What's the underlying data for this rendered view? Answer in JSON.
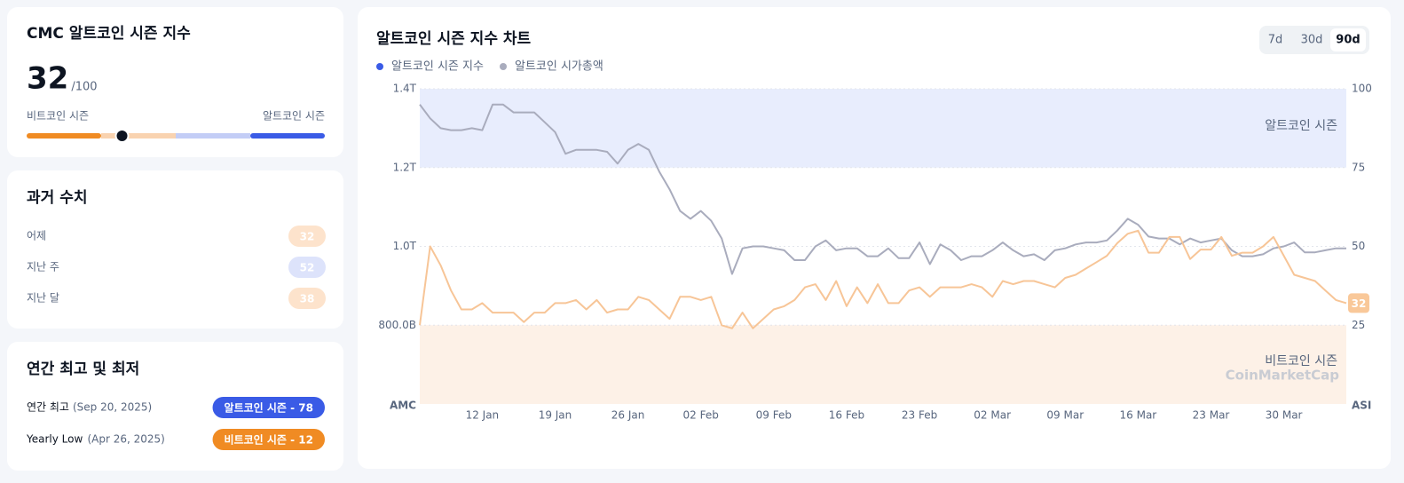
{
  "current": {
    "title": "CMC 알트코인 시즌 지수",
    "value": 32,
    "scale": "/100",
    "range": [
      0,
      100
    ],
    "left_label": "비트코인 시즌",
    "right_label": "알트코인 시즌"
  },
  "history": {
    "title": "과거 수치",
    "rows": [
      {
        "label": "어제",
        "value": 32,
        "color": "#fde3cc"
      },
      {
        "label": "지난 주",
        "value": 52,
        "color": "#dde3fb"
      },
      {
        "label": "지난 달",
        "value": 38,
        "color": "#fde3cc"
      }
    ]
  },
  "yearly": {
    "title": "연간 최고 및 최저",
    "rows": [
      {
        "label": "연간 최고",
        "date": "(Sep 20, 2025)",
        "badge": "알트코인 시즌 - 78",
        "color": "#3a5be6"
      },
      {
        "label": "Yearly Low",
        "date": "(Apr 26, 2025)",
        "badge": "비트코인 시즌 - 12",
        "color": "#f08b23"
      }
    ]
  },
  "chart_data": {
    "type": "line",
    "title": "알트코인 시즌 지수 차트",
    "ranges": [
      "7d",
      "30d",
      "90d"
    ],
    "selected_range": "90d",
    "watermark": "CoinMarketCap",
    "ylabel": "AMC",
    "y2label": "ASI",
    "categories": [
      null,
      null,
      null,
      null,
      null,
      null,
      "12 Jan",
      null,
      null,
      null,
      null,
      null,
      null,
      "19 Jan",
      null,
      null,
      null,
      null,
      null,
      null,
      "26 Jan",
      null,
      null,
      null,
      null,
      null,
      null,
      "02 Feb",
      null,
      null,
      null,
      null,
      null,
      null,
      "09 Feb",
      null,
      null,
      null,
      null,
      null,
      null,
      "16 Feb",
      null,
      null,
      null,
      null,
      null,
      null,
      "23 Feb",
      null,
      null,
      null,
      null,
      null,
      null,
      "02 Mar",
      null,
      null,
      null,
      null,
      null,
      null,
      "09 Mar",
      null,
      null,
      null,
      null,
      null,
      null,
      "16 Mar",
      null,
      null,
      null,
      null,
      null,
      null,
      "23 Mar",
      null,
      null,
      null,
      null,
      null,
      null,
      "30 Mar",
      null,
      null,
      null,
      null,
      null,
      null
    ],
    "ylim": [
      0.6,
      1.4
    ],
    "yticks": [
      {
        "value": 0.8,
        "label": "800.0B"
      },
      {
        "value": 1.0,
        "label": "1.0T"
      },
      {
        "value": 1.2,
        "label": "1.2T"
      },
      {
        "value": 1.4,
        "label": "1.4T"
      }
    ],
    "y2lim": [
      0,
      100
    ],
    "y2ticks": [
      25,
      50,
      75,
      100
    ],
    "grid": true,
    "zones": [
      {
        "label": "알트코인 시즌",
        "from": 75,
        "to": 100,
        "color": "#e8edfd"
      },
      {
        "label": "비트코인 시즌",
        "from": 0,
        "to": 25,
        "color": "#fdf1e7"
      }
    ],
    "series": [
      {
        "name": "알트코인 시즌 지수",
        "color": "#3a5be6",
        "line_color": "#f7c597",
        "axis": "y2",
        "end_label_color": "#f9c899",
        "values": [
          25,
          50,
          44,
          36,
          30,
          30,
          32,
          29,
          29,
          29,
          26,
          29,
          29,
          32,
          32,
          33,
          30,
          33,
          29,
          30,
          30,
          34,
          33,
          30,
          27,
          34,
          34,
          33,
          34,
          25,
          24,
          29,
          24,
          27,
          30,
          31,
          33,
          37,
          38,
          33,
          39,
          31,
          37,
          32,
          38,
          32,
          32,
          36,
          37,
          34,
          37,
          37,
          37,
          38,
          37,
          34,
          39,
          38,
          39,
          39,
          38,
          37,
          40,
          41,
          43,
          45,
          47,
          51,
          54,
          55,
          48,
          48,
          53,
          53,
          46,
          49,
          49,
          53,
          47,
          48,
          48,
          50,
          53,
          47,
          41,
          40,
          39,
          36,
          33,
          32
        ]
      },
      {
        "name": "알트코인 시가총액",
        "color": "#a9acbd",
        "axis": "y",
        "values": [
          1.36,
          1.325,
          1.3,
          1.295,
          1.295,
          1.3,
          1.295,
          1.36,
          1.36,
          1.34,
          1.34,
          1.34,
          1.315,
          1.29,
          1.235,
          1.245,
          1.245,
          1.245,
          1.24,
          1.21,
          1.245,
          1.26,
          1.245,
          1.19,
          1.145,
          1.09,
          1.07,
          1.09,
          1.065,
          1.02,
          0.93,
          0.995,
          1.0,
          1.0,
          0.995,
          0.99,
          0.965,
          0.965,
          1.0,
          1.015,
          0.99,
          0.995,
          0.995,
          0.975,
          0.975,
          0.995,
          0.97,
          0.97,
          1.01,
          0.955,
          1.005,
          0.99,
          0.965,
          0.975,
          0.975,
          0.99,
          1.01,
          0.99,
          0.975,
          0.98,
          0.965,
          0.99,
          0.995,
          1.005,
          1.01,
          1.01,
          1.015,
          1.04,
          1.07,
          1.055,
          1.025,
          1.02,
          1.02,
          1.005,
          1.02,
          1.01,
          1.015,
          1.02,
          0.99,
          0.975,
          0.975,
          0.98,
          0.995,
          1.0,
          1.01,
          0.985,
          0.985,
          0.99,
          0.995,
          0.995
        ]
      }
    ]
  }
}
